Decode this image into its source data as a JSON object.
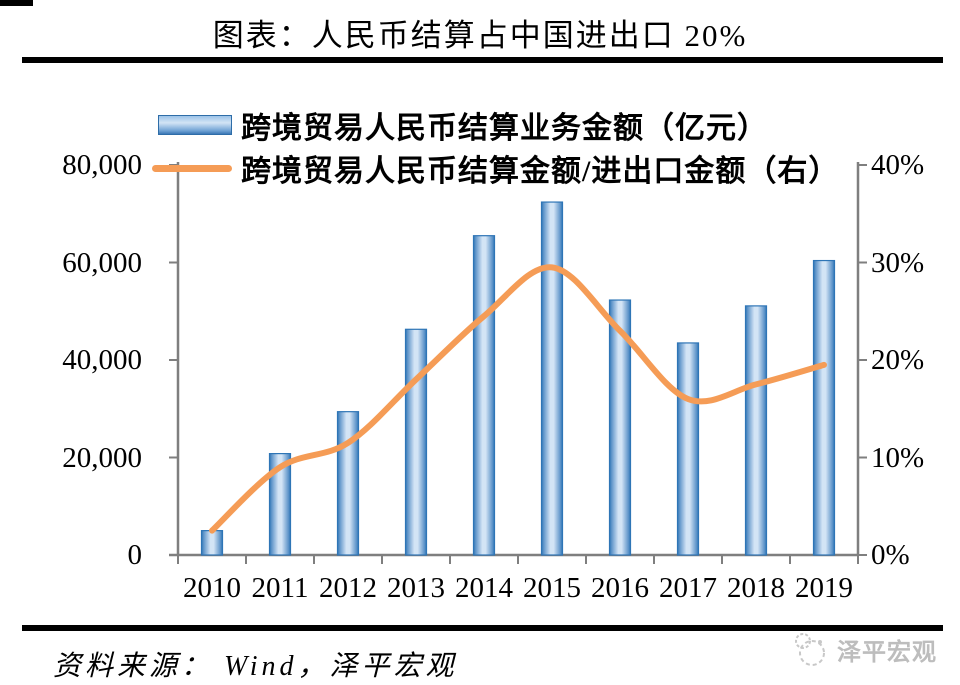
{
  "page": {
    "title": "图表：人民币结算占中国进出口 20%",
    "source": "资料来源： Wind，泽平宏观",
    "watermark": "泽平宏观"
  },
  "legend": [
    {
      "label": "跨境贸易人民币结算业务金额（亿元）",
      "type": "bar"
    },
    {
      "label": "跨境贸易人民币结算金额/进出口金额（右）",
      "type": "line"
    }
  ],
  "colors": {
    "bar_border": "#2E75B6",
    "bar_fill_light": "#D3E4F5",
    "bar_fill_mid": "#5B92C8",
    "line": "#F59C56",
    "axis": "#7F7F7F",
    "rule": "#000000",
    "watermark": "#BDBDBD"
  },
  "chart_data": {
    "type": "bar+line",
    "title": "图表：人民币结算占中国进出口 20%",
    "categories": [
      "2010",
      "2011",
      "2012",
      "2013",
      "2014",
      "2015",
      "2016",
      "2017",
      "2018",
      "2019"
    ],
    "series": [
      {
        "name": "跨境贸易人民币结算业务金额（亿元）",
        "type": "bar",
        "axis": "left",
        "values": [
          5000,
          20800,
          29400,
          46300,
          65500,
          72400,
          52300,
          43500,
          51100,
          60400
        ]
      },
      {
        "name": "跨境贸易人民币结算金额/进出口金额（右）",
        "type": "line",
        "axis": "right",
        "unit": "%",
        "values": [
          2.5,
          9,
          11.5,
          18,
          24.5,
          29.5,
          23,
          16,
          17.5,
          19.5
        ]
      }
    ],
    "left_axis": {
      "min": 0,
      "max": 80000,
      "ticks": [
        "80,000",
        "60,000",
        "40,000",
        "20,000",
        "0"
      ]
    },
    "right_axis": {
      "min": 0,
      "max": 40,
      "ticks": [
        "40%",
        "30%",
        "20%",
        "10%",
        "0%"
      ]
    },
    "legend_position": "top-left",
    "grid": false,
    "xlabel": "",
    "ylabel": ""
  }
}
